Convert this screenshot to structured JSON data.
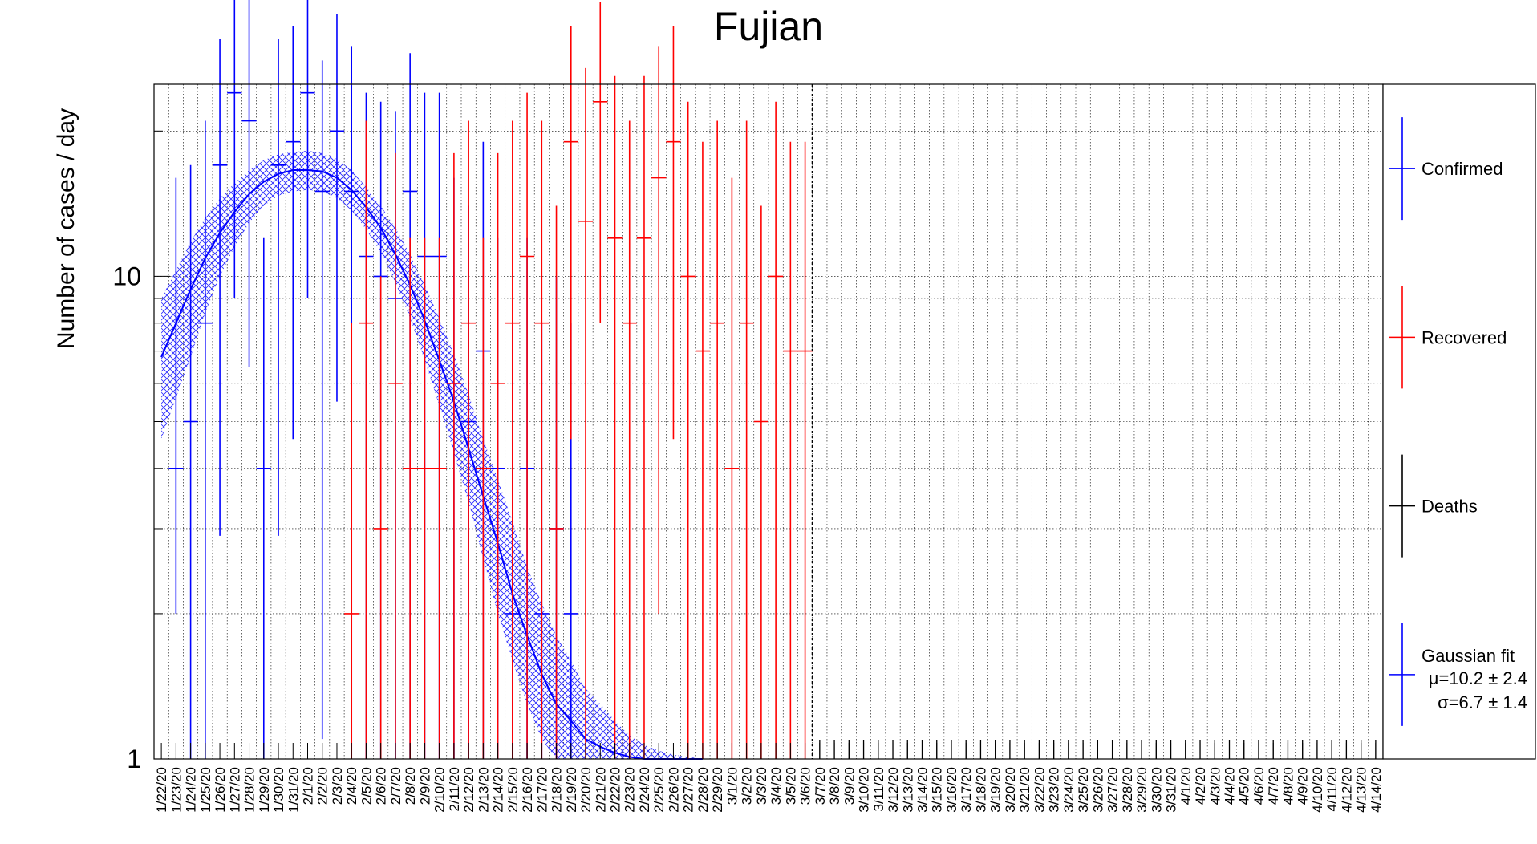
{
  "chart_data": {
    "type": "scatter",
    "title": "Fujian",
    "xlabel": "",
    "ylabel": "Number of cases / day",
    "y_scale": "log",
    "ylim": [
      1,
      25
    ],
    "y_ticks": [
      1,
      10
    ],
    "y_tick_labels": [
      "1",
      "10"
    ],
    "grid": true,
    "legend_position": "right",
    "categories": [
      "1/22/20",
      "1/23/20",
      "1/24/20",
      "1/25/20",
      "1/26/20",
      "1/27/20",
      "1/28/20",
      "1/29/20",
      "1/30/20",
      "1/31/20",
      "2/1/20",
      "2/2/20",
      "2/3/20",
      "2/4/20",
      "2/5/20",
      "2/6/20",
      "2/7/20",
      "2/8/20",
      "2/9/20",
      "2/10/20",
      "2/11/20",
      "2/12/20",
      "2/13/20",
      "2/14/20",
      "2/15/20",
      "2/16/20",
      "2/17/20",
      "2/18/20",
      "2/19/20",
      "2/20/20",
      "2/21/20",
      "2/22/20",
      "2/23/20",
      "2/24/20",
      "2/25/20",
      "2/26/20",
      "2/27/20",
      "2/28/20",
      "2/29/20",
      "3/1/20",
      "3/2/20",
      "3/3/20",
      "3/4/20",
      "3/5/20",
      "3/6/20",
      "3/7/20",
      "3/8/20",
      "3/9/20",
      "3/10/20",
      "3/11/20",
      "3/12/20",
      "3/13/20",
      "3/14/20",
      "3/15/20",
      "3/16/20",
      "3/17/20",
      "3/18/20",
      "3/19/20",
      "3/20/20",
      "3/21/20",
      "3/22/20",
      "3/23/20",
      "3/24/20",
      "3/25/20",
      "3/26/20",
      "3/27/20",
      "3/28/20",
      "3/29/20",
      "3/30/20",
      "3/31/20",
      "4/1/20",
      "4/2/20",
      "4/3/20",
      "4/4/20",
      "4/5/20",
      "4/6/20",
      "4/7/20",
      "4/8/20",
      "4/9/20",
      "4/10/20",
      "4/11/20",
      "4/12/20",
      "4/13/20",
      "4/14/20"
    ],
    "x_tick_labels": [
      "1/22/20",
      "1/23/20",
      "1/24/20",
      "1/25/20",
      "1/26/20",
      "1/27/20",
      "1/28/20",
      "1/29/20",
      "1/30/20",
      "1/31/20",
      "2/1/20",
      "2/2/20",
      "2/3/20",
      "2/4/20",
      "2/5/20",
      "2/6/20",
      "2/7/20",
      "2/8/20",
      "2/9/20",
      "2/10/20",
      "2/11/20",
      "2/12/20",
      "2/13/20",
      "2/14/20",
      "2/15/20",
      "2/16/20",
      "2/17/20",
      "2/18/20",
      "2/19/20",
      "2/20/20",
      "2/21/20",
      "2/22/20",
      "2/23/20",
      "2/24/20",
      "2/25/20",
      "2/26/20",
      "2/27/20",
      "2/28/20",
      "2/29/20",
      "3/1/20",
      "3/2/20",
      "3/3/20",
      "3/4/20",
      "3/5/20",
      "3/6/20",
      "3/7/20",
      "3/8/20",
      "3/9/20",
      "3/10/20",
      "3/11/20",
      "3/12/20",
      "3/13/20",
      "3/14/20",
      "3/15/20",
      "3/16/20",
      "3/17/20",
      "3/18/20",
      "3/19/20",
      "3/20/20",
      "3/21/20",
      "3/22/20",
      "3/23/20",
      "3/24/20",
      "3/25/20",
      "3/26/20",
      "3/27/20",
      "3/28/20",
      "3/29/20",
      "3/30/20",
      "3/31/20",
      "4/1/20",
      "4/2/20",
      "4/3/20",
      "4/4/20",
      "4/5/20",
      "4/6/20",
      "4/7/20",
      "4/8/20",
      "4/9/20",
      "4/10/20",
      "4/11/20",
      "4/12/20",
      "4/13/20",
      "4/14/20"
    ],
    "data_cutoff_date": "3/6/20",
    "series": [
      {
        "name": "Confirmed",
        "color": "#0000ff",
        "points": [
          {
            "x": "1/23/20",
            "y": 4,
            "err": [
              2.0,
              16.0
            ]
          },
          {
            "x": "1/24/20",
            "y": 5,
            "err": [
              1.0,
              17.0
            ]
          },
          {
            "x": "1/25/20",
            "y": 8,
            "err": [
              1.0,
              21.0
            ]
          },
          {
            "x": "1/26/20",
            "y": 17,
            "err": [
              2.9,
              31.0
            ]
          },
          {
            "x": "1/27/20",
            "y": 24,
            "err": [
              9.0,
              40.0
            ]
          },
          {
            "x": "1/28/20",
            "y": 21,
            "err": [
              6.5,
              40.0
            ]
          },
          {
            "x": "1/29/20",
            "y": 4,
            "err": [
              1.0,
              12.0
            ]
          },
          {
            "x": "1/30/20",
            "y": 17,
            "err": [
              2.9,
              31.0
            ]
          },
          {
            "x": "1/31/20",
            "y": 19,
            "err": [
              4.6,
              33.0
            ]
          },
          {
            "x": "2/1/20",
            "y": 24,
            "err": [
              9.0,
              40.0
            ]
          },
          {
            "x": "2/2/20",
            "y": 15,
            "err": [
              1.1,
              28.0
            ]
          },
          {
            "x": "2/3/20",
            "y": 20,
            "err": [
              5.5,
              35.0
            ]
          },
          {
            "x": "2/4/20",
            "y": 15,
            "err": [
              1.0,
              30.0
            ]
          },
          {
            "x": "2/5/20",
            "y": 11,
            "err": [
              1.0,
              24.0
            ]
          },
          {
            "x": "2/6/20",
            "y": 10,
            "err": [
              1.0,
              23.0
            ]
          },
          {
            "x": "2/7/20",
            "y": 9,
            "err": [
              1.0,
              22.0
            ]
          },
          {
            "x": "2/8/20",
            "y": 15,
            "err": [
              1.0,
              29.0
            ]
          },
          {
            "x": "2/9/20",
            "y": 11,
            "err": [
              1.0,
              24.0
            ]
          },
          {
            "x": "2/10/20",
            "y": 11,
            "err": [
              1.0,
              24.0
            ]
          },
          {
            "x": "2/11/20",
            "y": 6,
            "err": [
              1.0,
              16.0
            ]
          },
          {
            "x": "2/12/20",
            "y": 5,
            "err": [
              1.0,
              14.0
            ]
          },
          {
            "x": "2/13/20",
            "y": 7,
            "err": [
              1.0,
              19.0
            ]
          },
          {
            "x": "2/14/20",
            "y": 4,
            "err": [
              1.0,
              12.0
            ]
          },
          {
            "x": "2/15/20",
            "y": 2,
            "err": [
              1.0,
              8.0
            ]
          },
          {
            "x": "2/16/20",
            "y": 4,
            "err": [
              1.0,
              12.0
            ]
          },
          {
            "x": "2/17/20",
            "y": 2,
            "err": [
              1.0,
              8.0
            ]
          },
          {
            "x": "2/18/20",
            "y": 3,
            "err": [
              1.0,
              10.0
            ]
          },
          {
            "x": "2/19/20",
            "y": 2,
            "err": [
              1.0,
              8.0
            ]
          }
        ]
      },
      {
        "name": "Recovered",
        "color": "#ff0000",
        "points": [
          {
            "x": "2/4/20",
            "y": 2,
            "err": [
              1.0,
              8.0
            ]
          },
          {
            "x": "2/5/20",
            "y": 8,
            "err": [
              1.0,
              21.0
            ]
          },
          {
            "x": "2/6/20",
            "y": 3,
            "err": [
              1.0,
              10.0
            ]
          },
          {
            "x": "2/7/20",
            "y": 6,
            "err": [
              1.0,
              18.0
            ]
          },
          {
            "x": "2/8/20",
            "y": 4,
            "err": [
              1.0,
              12.0
            ]
          },
          {
            "x": "2/9/20",
            "y": 4,
            "err": [
              1.0,
              12.0
            ]
          },
          {
            "x": "2/10/20",
            "y": 4,
            "err": [
              1.0,
              12.0
            ]
          },
          {
            "x": "2/11/20",
            "y": 6,
            "err": [
              1.0,
              18.0
            ]
          },
          {
            "x": "2/12/20",
            "y": 8,
            "err": [
              1.0,
              21.0
            ]
          },
          {
            "x": "2/13/20",
            "y": 4,
            "err": [
              1.0,
              12.0
            ]
          },
          {
            "x": "2/14/20",
            "y": 6,
            "err": [
              1.0,
              18.0
            ]
          },
          {
            "x": "2/15/20",
            "y": 8,
            "err": [
              1.0,
              21.0
            ]
          },
          {
            "x": "2/16/20",
            "y": 11,
            "err": [
              1.0,
              24.0
            ]
          },
          {
            "x": "2/17/20",
            "y": 8,
            "err": [
              1.0,
              21.0
            ]
          },
          {
            "x": "2/18/20",
            "y": 3,
            "err": [
              1.0,
              14.0
            ]
          },
          {
            "x": "2/19/20",
            "y": 19,
            "err": [
              4.6,
              33.0
            ]
          },
          {
            "x": "2/20/20",
            "y": 13,
            "err": [
              1.0,
              27.0
            ]
          },
          {
            "x": "2/21/20",
            "y": 23,
            "err": [
              8.0,
              37.0
            ]
          },
          {
            "x": "2/22/20",
            "y": 12,
            "err": [
              1.0,
              26.0
            ]
          },
          {
            "x": "2/23/20",
            "y": 8,
            "err": [
              1.0,
              21.0
            ]
          },
          {
            "x": "2/24/20",
            "y": 12,
            "err": [
              1.0,
              26.0
            ]
          },
          {
            "x": "2/25/20",
            "y": 16,
            "err": [
              2.0,
              30.0
            ]
          },
          {
            "x": "2/26/20",
            "y": 19,
            "err": [
              4.6,
              33.0
            ]
          },
          {
            "x": "2/27/20",
            "y": 10,
            "err": [
              1.0,
              23.0
            ]
          },
          {
            "x": "2/28/20",
            "y": 7,
            "err": [
              1.0,
              19.0
            ]
          },
          {
            "x": "2/29/20",
            "y": 8,
            "err": [
              1.0,
              21.0
            ]
          },
          {
            "x": "3/1/20",
            "y": 4,
            "err": [
              1.0,
              16.0
            ]
          },
          {
            "x": "3/2/20",
            "y": 8,
            "err": [
              1.0,
              21.0
            ]
          },
          {
            "x": "3/3/20",
            "y": 5,
            "err": [
              1.0,
              14.0
            ]
          },
          {
            "x": "3/4/20",
            "y": 10,
            "err": [
              1.0,
              23.0
            ]
          },
          {
            "x": "3/5/20",
            "y": 7,
            "err": [
              1.0,
              19.0
            ]
          },
          {
            "x": "3/6/20",
            "y": 7,
            "err": [
              1.0,
              19.0
            ]
          }
        ]
      },
      {
        "name": "Deaths",
        "color": "#000000",
        "points": [
          {
            "x": "3/7/20",
            "y": 0
          },
          {
            "x": "3/8/20",
            "y": 0
          },
          {
            "x": "3/9/20",
            "y": 0
          },
          {
            "x": "3/10/20",
            "y": 0
          },
          {
            "x": "3/11/20",
            "y": 0
          },
          {
            "x": "3/12/20",
            "y": 0
          },
          {
            "x": "3/13/20",
            "y": 0
          },
          {
            "x": "3/14/20",
            "y": 0
          },
          {
            "x": "3/15/20",
            "y": 0
          },
          {
            "x": "3/16/20",
            "y": 0
          },
          {
            "x": "3/17/20",
            "y": 0
          },
          {
            "x": "3/18/20",
            "y": 0
          },
          {
            "x": "3/19/20",
            "y": 0
          },
          {
            "x": "3/20/20",
            "y": 0
          },
          {
            "x": "3/21/20",
            "y": 0
          },
          {
            "x": "3/22/20",
            "y": 0
          },
          {
            "x": "3/23/20",
            "y": 0
          },
          {
            "x": "3/24/20",
            "y": 0
          },
          {
            "x": "3/25/20",
            "y": 0
          },
          {
            "x": "3/26/20",
            "y": 0
          },
          {
            "x": "3/27/20",
            "y": 0
          },
          {
            "x": "3/28/20",
            "y": 0
          },
          {
            "x": "3/29/20",
            "y": 0
          },
          {
            "x": "3/30/20",
            "y": 0
          },
          {
            "x": "3/31/20",
            "y": 0
          },
          {
            "x": "4/1/20",
            "y": 0
          },
          {
            "x": "4/2/20",
            "y": 0
          },
          {
            "x": "4/3/20",
            "y": 0
          },
          {
            "x": "4/4/20",
            "y": 0
          },
          {
            "x": "4/5/20",
            "y": 0
          },
          {
            "x": "4/6/20",
            "y": 0
          },
          {
            "x": "4/7/20",
            "y": 0
          },
          {
            "x": "4/8/20",
            "y": 0
          },
          {
            "x": "4/9/20",
            "y": 0
          },
          {
            "x": "4/10/20",
            "y": 0
          },
          {
            "x": "4/11/20",
            "y": 0
          },
          {
            "x": "4/12/20",
            "y": 0
          },
          {
            "x": "4/13/20",
            "y": 0
          },
          {
            "x": "4/14/20",
            "y": 0
          }
        ]
      }
    ],
    "fit": {
      "name": "Gaussian fit",
      "color": "#0000ff",
      "band_color": "#0000ff",
      "label_mu": "μ=10.2 ± 2.4",
      "label_sigma": "σ=6.7 ± 1.4",
      "amplitude": 16.6,
      "mu": 10.2,
      "sigma": 6.7,
      "curve": [
        {
          "x": "1/22/20",
          "y": 6.8,
          "lo": 4.6,
          "hi": 9.0
        },
        {
          "x": "1/23/20",
          "y": 8.0,
          "lo": 5.6,
          "hi": 10.3
        },
        {
          "x": "1/24/20",
          "y": 9.4,
          "lo": 6.8,
          "hi": 11.8
        },
        {
          "x": "1/25/20",
          "y": 10.9,
          "lo": 8.4,
          "hi": 13.2
        },
        {
          "x": "1/26/20",
          "y": 12.3,
          "lo": 10.0,
          "hi": 14.5
        },
        {
          "x": "1/27/20",
          "y": 13.6,
          "lo": 11.5,
          "hi": 15.6
        },
        {
          "x": "1/28/20",
          "y": 14.8,
          "lo": 12.9,
          "hi": 16.6
        },
        {
          "x": "1/29/20",
          "y": 15.7,
          "lo": 14.0,
          "hi": 17.4
        },
        {
          "x": "1/30/20",
          "y": 16.3,
          "lo": 14.7,
          "hi": 17.9
        },
        {
          "x": "1/31/20",
          "y": 16.6,
          "lo": 15.0,
          "hi": 18.1
        },
        {
          "x": "2/1/20",
          "y": 16.6,
          "lo": 15.1,
          "hi": 18.2
        },
        {
          "x": "2/2/20",
          "y": 16.5,
          "lo": 15.0,
          "hi": 18.0
        },
        {
          "x": "2/3/20",
          "y": 16.0,
          "lo": 14.5,
          "hi": 17.5
        },
        {
          "x": "2/4/20",
          "y": 15.1,
          "lo": 13.7,
          "hi": 16.6
        },
        {
          "x": "2/5/20",
          "y": 13.9,
          "lo": 12.5,
          "hi": 15.3
        },
        {
          "x": "2/6/20",
          "y": 12.6,
          "lo": 11.2,
          "hi": 14.0
        },
        {
          "x": "2/7/20",
          "y": 11.1,
          "lo": 9.7,
          "hi": 12.6
        },
        {
          "x": "2/8/20",
          "y": 9.6,
          "lo": 8.2,
          "hi": 11.1
        },
        {
          "x": "2/9/20",
          "y": 8.1,
          "lo": 6.7,
          "hi": 9.6
        },
        {
          "x": "2/10/20",
          "y": 6.7,
          "lo": 5.4,
          "hi": 8.2
        },
        {
          "x": "2/11/20",
          "y": 5.5,
          "lo": 4.3,
          "hi": 6.9
        },
        {
          "x": "2/12/20",
          "y": 4.4,
          "lo": 3.4,
          "hi": 5.7
        },
        {
          "x": "2/13/20",
          "y": 3.5,
          "lo": 2.6,
          "hi": 4.6
        },
        {
          "x": "2/14/20",
          "y": 2.8,
          "lo": 2.0,
          "hi": 3.8
        },
        {
          "x": "2/15/20",
          "y": 2.2,
          "lo": 1.6,
          "hi": 3.1
        },
        {
          "x": "2/16/20",
          "y": 1.8,
          "lo": 1.3,
          "hi": 2.5
        },
        {
          "x": "2/17/20",
          "y": 1.5,
          "lo": 1.1,
          "hi": 2.1
        },
        {
          "x": "2/18/20",
          "y": 1.3,
          "lo": 1.0,
          "hi": 1.8
        },
        {
          "x": "2/19/20",
          "y": 1.2,
          "lo": 1.0,
          "hi": 1.6
        },
        {
          "x": "2/20/20",
          "y": 1.1,
          "lo": 1.0,
          "hi": 1.4
        },
        {
          "x": "2/21/20",
          "y": 1.06,
          "lo": 1.0,
          "hi": 1.3
        },
        {
          "x": "2/22/20",
          "y": 1.03,
          "lo": 1.0,
          "hi": 1.2
        },
        {
          "x": "2/23/20",
          "y": 1.01,
          "lo": 1.0,
          "hi": 1.12
        },
        {
          "x": "2/24/20",
          "y": 1.0,
          "lo": 1.0,
          "hi": 1.07
        },
        {
          "x": "2/25/20",
          "y": 1.0,
          "lo": 1.0,
          "hi": 1.04
        },
        {
          "x": "2/26/20",
          "y": 1.0,
          "lo": 1.0,
          "hi": 1.02
        },
        {
          "x": "2/27/20",
          "y": 1.0,
          "lo": 1.0,
          "hi": 1.01
        },
        {
          "x": "2/28/20",
          "y": 1.0,
          "lo": 1.0,
          "hi": 1.0
        }
      ]
    },
    "legend": [
      {
        "label": "Confirmed",
        "color": "#0000ff"
      },
      {
        "label": "Recovered",
        "color": "#ff0000"
      },
      {
        "label": "Deaths",
        "color": "#000000"
      },
      {
        "label": "Gaussian fit",
        "color": "#0000ff",
        "extra": [
          "μ=10.2 ± 2.4",
          "σ=6.7 ± 1.4"
        ]
      }
    ]
  }
}
